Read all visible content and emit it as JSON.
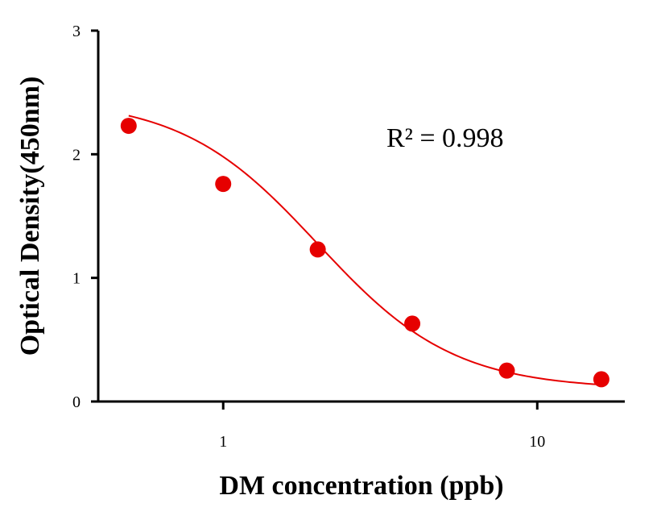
{
  "chart_data": {
    "type": "scatter",
    "xlabel": "DM concentration (ppb)",
    "ylabel": "Optical Density(450nm)",
    "x_scale": "log",
    "xlim": [
      0.4,
      19
    ],
    "ylim": [
      0,
      3
    ],
    "x_ticks": [
      1,
      10
    ],
    "x_tick_labels": [
      "1",
      "10"
    ],
    "y_ticks": [
      0,
      1,
      2,
      3
    ],
    "y_tick_labels": [
      "0",
      "1",
      "2",
      "3"
    ],
    "grid": false,
    "annotation": "R² = 0.998",
    "color": "#e60000",
    "series": [
      {
        "x": [
          0.5,
          1,
          2,
          4,
          8,
          16
        ],
        "y": [
          2.23,
          1.76,
          1.23,
          0.63,
          0.25,
          0.18
        ]
      }
    ],
    "fit": {
      "type": "4PL",
      "a": 2.45,
      "b": 2.0,
      "c": 2.0,
      "d": 0.1
    }
  }
}
